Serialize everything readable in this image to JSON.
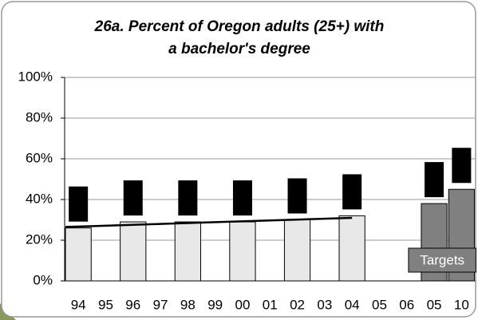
{
  "chart_data": {
    "type": "bar",
    "title": [
      "26a. Percent of Oregon adults (25+) with",
      "a bachelor's degree"
    ],
    "categories": [
      "94",
      "95",
      "96",
      "97",
      "98",
      "99",
      "00",
      "01",
      "02",
      "03",
      "04",
      "05",
      "06",
      "05",
      "10"
    ],
    "series": [
      {
        "color": "#e8e8e8",
        "values": [
          26,
          null,
          29,
          null,
          29,
          null,
          29,
          null,
          30,
          null,
          32,
          null,
          null,
          null,
          null
        ]
      },
      {
        "color": "#808080",
        "values": [
          null,
          null,
          null,
          null,
          null,
          null,
          null,
          null,
          null,
          null,
          null,
          null,
          null,
          38,
          45
        ]
      }
    ],
    "trend": {
      "color": "#000000",
      "values": [
        26.5,
        null,
        null,
        null,
        null,
        null,
        null,
        null,
        null,
        null,
        31,
        null,
        null,
        null,
        null
      ]
    },
    "annotation": "Targets",
    "ylim": [
      0,
      100
    ],
    "yticks": [
      {
        "value": 0,
        "label": "0%"
      },
      {
        "value": 20,
        "label": "20%"
      },
      {
        "value": 40,
        "label": "40%"
      },
      {
        "value": 60,
        "label": "60%"
      },
      {
        "value": 80,
        "label": "80%"
      },
      {
        "value": 100,
        "label": "100%"
      }
    ],
    "grid": true
  }
}
